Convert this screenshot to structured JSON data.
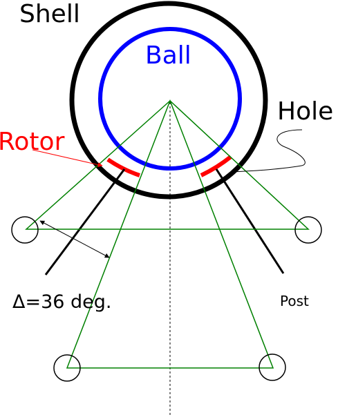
{
  "labels": {
    "shell": "Shell",
    "ball": "Ball",
    "hole": "Hole",
    "rotor": "Rotor",
    "delta": "Δ=36 deg.",
    "post": "Post"
  },
  "colors": {
    "shell": "#000000",
    "ball": "#0000ff",
    "rotor": "#ff0000",
    "triangles": "#008000",
    "rotor_label": "#ff0000",
    "ball_label": "#0000ff",
    "axis": "#000000"
  }
}
